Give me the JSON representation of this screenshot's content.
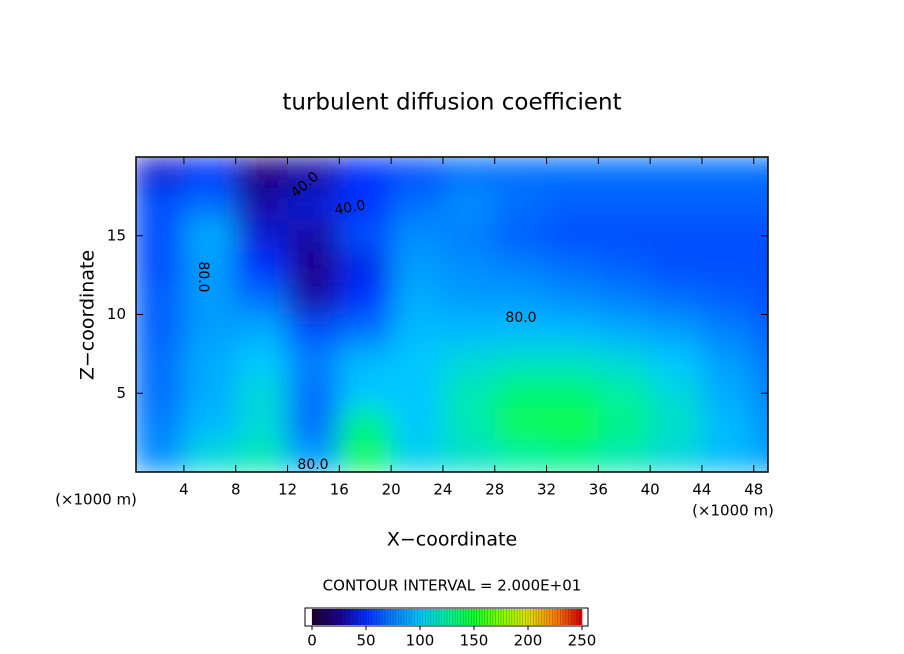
{
  "chart_data": {
    "type": "contour",
    "title": "turbulent diffusion coefficient",
    "x_label": "X−coordinate",
    "y_label": "Z−coordinate",
    "x_unit": "(×1000 m)",
    "y_unit": "(×1000 m)",
    "xlim": [
      0.3,
      49.1
    ],
    "xticks": [
      4,
      8,
      12,
      16,
      20,
      24,
      28,
      32,
      36,
      40,
      44,
      48
    ],
    "ylim": [
      0,
      20
    ],
    "yticks": [
      5,
      10,
      15
    ],
    "field": {
      "x": [
        2,
        6,
        10,
        14,
        18,
        22,
        26,
        30,
        34,
        38,
        42,
        46,
        50
      ],
      "z": [
        19,
        17,
        15,
        13,
        11,
        9,
        7,
        5,
        3,
        1
      ],
      "values": [
        [
          40,
          50,
          20,
          30,
          50,
          60,
          70,
          70,
          70,
          70,
          70,
          70,
          70
        ],
        [
          60,
          70,
          30,
          40,
          50,
          70,
          80,
          70,
          65,
          65,
          65,
          65,
          65
        ],
        [
          60,
          90,
          40,
          30,
          60,
          80,
          75,
          65,
          60,
          60,
          60,
          60,
          60
        ],
        [
          60,
          85,
          50,
          25,
          45,
          85,
          80,
          75,
          70,
          65,
          60,
          60,
          60
        ],
        [
          65,
          85,
          70,
          30,
          50,
          90,
          85,
          85,
          80,
          75,
          70,
          65,
          60
        ],
        [
          65,
          85,
          90,
          60,
          70,
          95,
          95,
          95,
          95,
          90,
          85,
          75,
          65
        ],
        [
          70,
          90,
          100,
          75,
          95,
          100,
          110,
          115,
          115,
          110,
          100,
          85,
          70
        ],
        [
          70,
          90,
          110,
          70,
          100,
          100,
          120,
          135,
          135,
          125,
          110,
          90,
          75
        ],
        [
          75,
          95,
          110,
          70,
          130,
          100,
          120,
          140,
          145,
          130,
          115,
          95,
          80
        ],
        [
          80,
          110,
          120,
          85,
          140,
          105,
          115,
          125,
          130,
          120,
          110,
          95,
          85
        ]
      ]
    },
    "contour_labels": [
      "40.0",
      "40.0",
      "80.0",
      "80.0",
      "80.0"
    ],
    "contour_interval_label": "CONTOUR INTERVAL = 2.000E+01",
    "colorbar": {
      "lim": [
        0,
        250
      ],
      "ticks": [
        0,
        50,
        100,
        150,
        200,
        250
      ],
      "colormap": [
        "#1e0030",
        "#1c0090",
        "#0030ff",
        "#0080ff",
        "#00c8ff",
        "#00f0a0",
        "#10ff30",
        "#80ff00",
        "#e0e000",
        "#ff8000",
        "#d00000"
      ]
    }
  }
}
